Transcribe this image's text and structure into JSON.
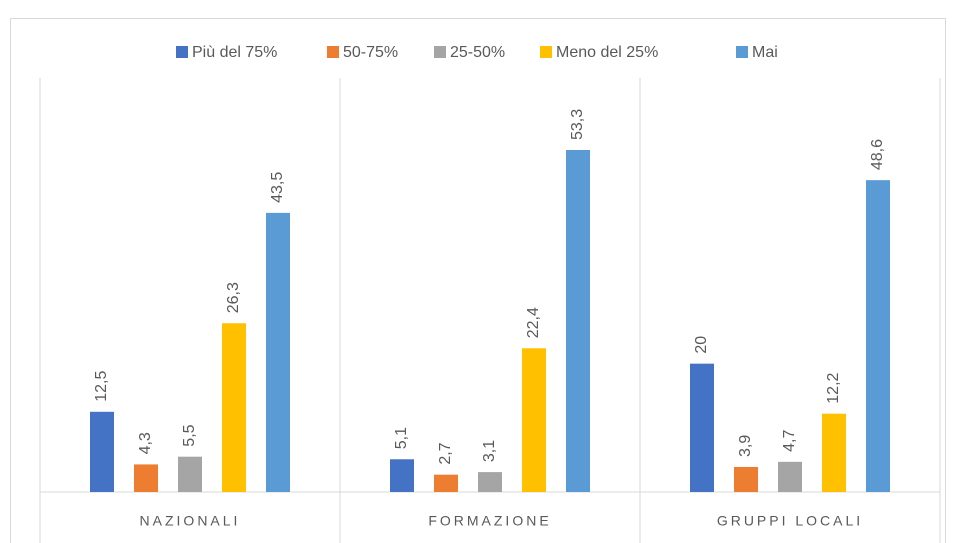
{
  "chart_data": {
    "type": "bar",
    "categories": [
      "NAZIONALI",
      "FORMAZIONE",
      "GRUPPI LOCALI"
    ],
    "series": [
      {
        "name": "Più del 75%",
        "color": "#4472c4",
        "values": [
          12.5,
          5.1,
          20
        ],
        "value_labels": [
          "12,5",
          "5,1",
          "20"
        ]
      },
      {
        "name": "50-75%",
        "color": "#ed7d31",
        "values": [
          4.3,
          2.7,
          3.9
        ],
        "value_labels": [
          "4,3",
          "2,7",
          "3,9"
        ]
      },
      {
        "name": "25-50%",
        "color": "#a5a5a5",
        "values": [
          5.5,
          3.1,
          4.7
        ],
        "value_labels": [
          "5,5",
          "3,1",
          "4,7"
        ]
      },
      {
        "name": "Meno del 25%",
        "color": "#ffc000",
        "values": [
          26.3,
          22.4,
          12.2
        ],
        "value_labels": [
          "26,3",
          "22,4",
          "12,2"
        ]
      },
      {
        "name": "Mai",
        "color": "#5b9bd5",
        "values": [
          43.5,
          53.3,
          48.6
        ],
        "value_labels": [
          "43,5",
          "53,3",
          "48,6"
        ]
      }
    ],
    "ylim": [
      0,
      60
    ],
    "legend": "top"
  }
}
